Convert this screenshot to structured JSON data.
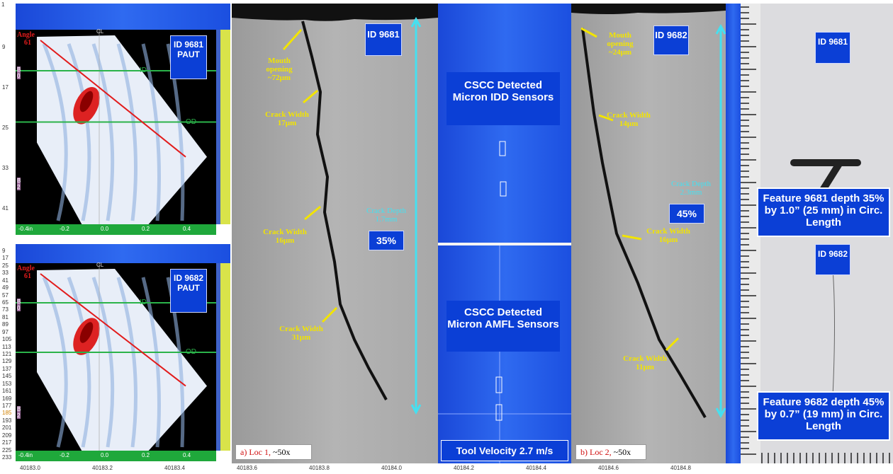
{
  "corner_tick": "1",
  "paut_panels": [
    {
      "angle_label": "Angle",
      "angle_value": "61",
      "cl": "CL",
      "b0": "B 0",
      "id_line": "ID",
      "od_line": "OD",
      "b2": "B 2",
      "badge": "ID 9681 PAUT",
      "y_ticks": [
        "9",
        "17",
        "25",
        "33",
        "41"
      ],
      "x_ticks": [
        "-0.4in",
        "-0.2",
        "0.0",
        "0.2",
        "0.4"
      ]
    },
    {
      "angle_label": "Angle",
      "angle_value": "61",
      "cl": "CL",
      "b0": "B 0",
      "id_line": "ID",
      "od_line": "OD",
      "b2": "B 2",
      "badge": "ID 9682 PAUT",
      "y_ticks": [
        "9",
        "17",
        "25",
        "33",
        "41",
        "49",
        "57",
        "65",
        "73",
        "81",
        "89",
        "97",
        "105",
        "113",
        "121",
        "129",
        "137",
        "145",
        "153",
        "161",
        "169",
        "177",
        "185",
        "193",
        "201",
        "209",
        "217",
        "225",
        "233"
      ],
      "x_ticks": [
        "-0.4in",
        "-0.2",
        "0.0",
        "0.2",
        "0.4"
      ]
    }
  ],
  "micrographs": [
    {
      "badge": "ID 9681",
      "annotations": [
        "Mouth opening ~72µm",
        "Crack Width 17µm",
        "Crack Width 16µm",
        "Crack Width 31µm"
      ],
      "depth_label": "Crack Depth 1.7mm",
      "percent": "35%",
      "caption_loc": "a) Loc 1,",
      "caption_mag": "~50x"
    },
    {
      "badge": "ID 9682",
      "annotations": [
        "Mouth opening ~24µm",
        "Crack Width 14µm",
        "Crack Width 16µm",
        "Crack Width 11µm"
      ],
      "depth_label": "Crack Depth 2.3mm",
      "percent": "45%",
      "caption_loc": "b) Loc 2,",
      "caption_mag": "~50x"
    }
  ],
  "sensor_panel": {
    "idd": "CSCC Detected Micron IDD Sensors",
    "amfl": "CSCC Detected Micron AMFL Sensors",
    "velocity": "Tool Velocity 2.7 m/s"
  },
  "photo": {
    "badges": [
      "ID 9681",
      "ID 9682"
    ],
    "features": [
      "Feature 9681 depth 35% by 1.0” (25 mm) in Circ. Length",
      "Feature 9682 depth 45% by 0.7” (19 mm) in Circ. Length"
    ]
  },
  "x_axis": [
    "40183.0",
    "40183.2",
    "40183.4",
    "40183.6",
    "40183.8",
    "40184.0",
    "40184.2",
    "40184.4",
    "40184.6",
    "40184.8"
  ]
}
